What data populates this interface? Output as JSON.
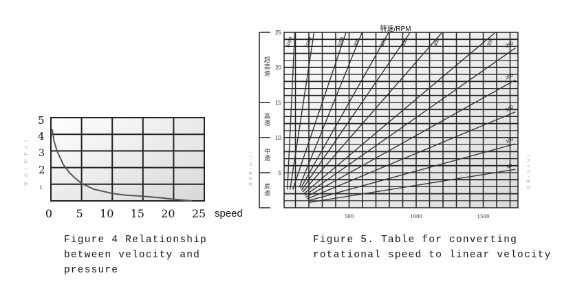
{
  "figure4": {
    "caption_lines": [
      "Figure 4 Relationship",
      "between velocity and",
      "pressure"
    ],
    "chart_data": {
      "type": "line",
      "title": "",
      "xlabel": "speed",
      "ylabel": "压力(MPa)",
      "xlim": [
        0,
        25
      ],
      "ylim": [
        0,
        5
      ],
      "x_ticks": [
        "0",
        "5",
        "10",
        "15",
        "20",
        "25"
      ],
      "y_ticks": [
        "1",
        "2",
        "3",
        "4",
        "5"
      ],
      "grid": true,
      "series": [
        {
          "x": [
            0.2,
            0.5,
            1,
            2,
            3,
            4,
            5,
            7,
            10,
            12,
            15,
            18,
            20,
            22,
            23
          ],
          "y": [
            4.3,
            3.6,
            3.0,
            2.2,
            1.7,
            1.35,
            1.05,
            0.7,
            0.45,
            0.35,
            0.28,
            0.18,
            0.1,
            0.03,
            0.0
          ]
        }
      ]
    }
  },
  "figure5": {
    "caption_lines": [
      "Figure 5. Table for converting",
      "rotational speed to linear velocity"
    ],
    "chart_data": {
      "type": "line",
      "title": "转速/RPM",
      "xlabel": "",
      "ylabel": "线速度(m/s)",
      "right_label": "转速(RPM)",
      "xlim": [
        0,
        1750
      ],
      "ylim": [
        0,
        25
      ],
      "x_ticks": [
        "500",
        "1000",
        "1500"
      ],
      "y_ticks": [
        "5",
        "10",
        "15",
        "20",
        "25"
      ],
      "grid": true,
      "speed_zones": [
        {
          "label": "超高速",
          "range": [
            15,
            25
          ]
        },
        {
          "label": "高速",
          "range": [
            10,
            15
          ]
        },
        {
          "label": "中速",
          "range": [
            5,
            10
          ]
        },
        {
          "label": "底速",
          "range": [
            0,
            5
          ]
        }
      ],
      "series": [
        {
          "name": "5000"
        },
        {
          "name": "2000"
        },
        {
          "name": "1000"
        },
        {
          "name": "800"
        },
        {
          "name": "600"
        },
        {
          "name": "500"
        },
        {
          "name": "400"
        },
        {
          "name": "300"
        },
        {
          "name": "250"
        },
        {
          "name": "200"
        },
        {
          "name": "150"
        },
        {
          "name": "100"
        },
        {
          "name": "60"
        }
      ]
    }
  }
}
